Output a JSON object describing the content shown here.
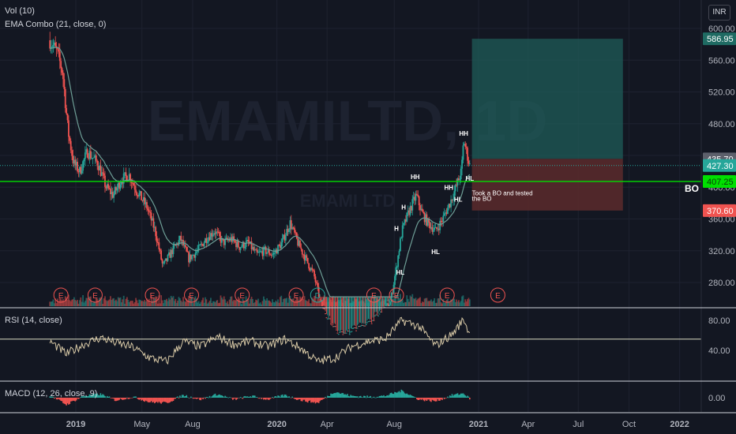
{
  "legend": {
    "vol": "Vol (10)",
    "ema": "EMA Combo (21, close, 0)",
    "rsi": "RSI (14, close)",
    "macd": "MACD (12, 26, close, 9)"
  },
  "currency": "INR",
  "watermark": {
    "symbol": "EMAMILTD, 1D",
    "name": "EMAMI LTD"
  },
  "colors": {
    "background": "#131722",
    "up": "#26a69a",
    "down": "#ef5350",
    "ema": "#6e9e96",
    "breakout_line": "#00e000",
    "rsi": "#d8c9a6",
    "target_zone": "#1f5c58",
    "stop_zone": "#5c2a2b"
  },
  "chart_data": [
    {
      "type": "candlestick",
      "title": "EMAMILTD, 1D",
      "y_ticks": [
        280,
        320,
        360,
        400,
        440,
        480,
        520,
        560,
        600
      ],
      "ylim": [
        265,
        610
      ],
      "x_ticks": [
        "2019",
        "May",
        "Aug",
        "2020",
        "Apr",
        "Aug",
        "2021",
        "Apr",
        "Jul",
        "Oct",
        "2022"
      ],
      "price_labels": [
        {
          "label": "586.95",
          "value": 586.95,
          "kind": "target"
        },
        {
          "label": "435.70",
          "value": 435.7,
          "kind": "entry"
        },
        {
          "label": "427.30",
          "value": 427.3,
          "kind": "last"
        },
        {
          "label": "407.25",
          "value": 407.25,
          "kind": "breakout"
        },
        {
          "label": "370.60",
          "value": 370.6,
          "kind": "stop"
        }
      ],
      "close_path": [
        {
          "date": "2018-11-15",
          "close": 585
        },
        {
          "date": "2018-11-28",
          "close": 570
        },
        {
          "date": "2018-12-08",
          "close": 545
        },
        {
          "date": "2018-12-18",
          "close": 470
        },
        {
          "date": "2018-12-28",
          "close": 430
        },
        {
          "date": "2019-01-08",
          "close": 420
        },
        {
          "date": "2019-01-22",
          "close": 445
        },
        {
          "date": "2019-02-10",
          "close": 430
        },
        {
          "date": "2019-02-25",
          "close": 400
        },
        {
          "date": "2019-03-10",
          "close": 390
        },
        {
          "date": "2019-03-25",
          "close": 410
        },
        {
          "date": "2019-04-08",
          "close": 415
        },
        {
          "date": "2019-04-22",
          "close": 395
        },
        {
          "date": "2019-05-10",
          "close": 375
        },
        {
          "date": "2019-05-25",
          "close": 345
        },
        {
          "date": "2019-06-08",
          "close": 300
        },
        {
          "date": "2019-06-25",
          "close": 320
        },
        {
          "date": "2019-07-10",
          "close": 335
        },
        {
          "date": "2019-07-25",
          "close": 310
        },
        {
          "date": "2019-08-10",
          "close": 320
        },
        {
          "date": "2019-08-25",
          "close": 335
        },
        {
          "date": "2019-09-10",
          "close": 345
        },
        {
          "date": "2019-09-25",
          "close": 330
        },
        {
          "date": "2019-10-10",
          "close": 335
        },
        {
          "date": "2019-10-25",
          "close": 325
        },
        {
          "date": "2019-11-10",
          "close": 330
        },
        {
          "date": "2019-11-25",
          "close": 315
        },
        {
          "date": "2019-12-10",
          "close": 320
        },
        {
          "date": "2019-12-25",
          "close": 315
        },
        {
          "date": "2020-01-10",
          "close": 330
        },
        {
          "date": "2020-01-25",
          "close": 355
        },
        {
          "date": "2020-02-08",
          "close": 330
        },
        {
          "date": "2020-02-22",
          "close": 310
        },
        {
          "date": "2020-03-08",
          "close": 290
        },
        {
          "date": "2020-03-22",
          "close": 250
        },
        {
          "date": "2020-04-05",
          "close": 230
        },
        {
          "date": "2020-04-20",
          "close": 218
        },
        {
          "date": "2020-05-05",
          "close": 215
        },
        {
          "date": "2020-05-20",
          "close": 220
        },
        {
          "date": "2020-06-05",
          "close": 225
        },
        {
          "date": "2020-06-20",
          "close": 230
        },
        {
          "date": "2020-07-05",
          "close": 240
        },
        {
          "date": "2020-07-25",
          "close": 255
        },
        {
          "date": "2020-08-05",
          "close": 300
        },
        {
          "date": "2020-08-15",
          "close": 345
        },
        {
          "date": "2020-08-28",
          "close": 370
        },
        {
          "date": "2020-09-10",
          "close": 390
        },
        {
          "date": "2020-09-20",
          "close": 368
        },
        {
          "date": "2020-10-01",
          "close": 355
        },
        {
          "date": "2020-10-15",
          "close": 345
        },
        {
          "date": "2020-10-28",
          "close": 360
        },
        {
          "date": "2020-11-10",
          "close": 380
        },
        {
          "date": "2020-11-20",
          "close": 398
        },
        {
          "date": "2020-12-01",
          "close": 420
        },
        {
          "date": "2020-12-05",
          "close": 460
        },
        {
          "date": "2020-12-10",
          "close": 445
        },
        {
          "date": "2020-12-16",
          "close": 427.3
        }
      ],
      "annotations": [
        {
          "text": "HH",
          "date": "2020-12-05",
          "price": 465
        },
        {
          "text": "HH",
          "date": "2020-09-08",
          "price": 410
        },
        {
          "text": "HH",
          "date": "2020-11-08",
          "price": 397
        },
        {
          "text": "HL",
          "date": "2020-12-16",
          "price": 408
        },
        {
          "text": "HL",
          "date": "2020-11-25",
          "price": 382
        },
        {
          "text": "HL",
          "date": "2020-10-15",
          "price": 316
        },
        {
          "text": "HL",
          "date": "2020-08-12",
          "price": 290
        },
        {
          "text": "H",
          "date": "2020-08-05",
          "price": 345
        },
        {
          "text": "H",
          "date": "2020-08-18",
          "price": 372
        },
        {
          "text": "BO",
          "price": 407.25,
          "position": "right"
        },
        {
          "text": "Took a BO and tested",
          "date": "2020-12-20",
          "price": 390
        },
        {
          "text": "the BO",
          "date": "2020-12-20",
          "price": 383
        }
      ],
      "events": [
        {
          "date": "2018-12-05",
          "label": "E"
        },
        {
          "date": "2019-02-05",
          "label": "E"
        },
        {
          "date": "2019-05-20",
          "label": "E"
        },
        {
          "date": "2019-07-30",
          "label": "E"
        },
        {
          "date": "2019-10-30",
          "label": "E"
        },
        {
          "date": "2020-02-05",
          "label": "E"
        },
        {
          "date": "2020-03-15",
          "label": "D"
        },
        {
          "date": "2020-06-25",
          "label": "E"
        },
        {
          "date": "2020-08-05",
          "label": "E"
        },
        {
          "date": "2020-11-05",
          "label": "E"
        },
        {
          "date": "2021-02-05",
          "label": "E"
        }
      ],
      "position_tool": {
        "entry": 435.7,
        "target": 586.95,
        "stop": 370.6,
        "start_date": "2020-12-20",
        "end_date": "2021-09-20"
      }
    },
    {
      "type": "line",
      "title": "RSI (14, close)",
      "y_ticks": [
        40,
        80
      ],
      "ylim": [
        10,
        90
      ],
      "levels": [
        55
      ],
      "rsi_path": [
        {
          "date": "2018-11-15",
          "value": 52
        },
        {
          "date": "2018-12-15",
          "value": 35
        },
        {
          "date": "2019-01-15",
          "value": 48
        },
        {
          "date": "2019-02-15",
          "value": 57
        },
        {
          "date": "2019-03-15",
          "value": 50
        },
        {
          "date": "2019-04-15",
          "value": 44
        },
        {
          "date": "2019-05-15",
          "value": 30
        },
        {
          "date": "2019-06-15",
          "value": 25
        },
        {
          "date": "2019-07-15",
          "value": 52
        },
        {
          "date": "2019-08-15",
          "value": 45
        },
        {
          "date": "2019-09-15",
          "value": 58
        },
        {
          "date": "2019-10-15",
          "value": 48
        },
        {
          "date": "2019-11-15",
          "value": 52
        },
        {
          "date": "2019-12-15",
          "value": 45
        },
        {
          "date": "2020-01-15",
          "value": 55
        },
        {
          "date": "2020-02-15",
          "value": 42
        },
        {
          "date": "2020-03-15",
          "value": 25
        },
        {
          "date": "2020-04-15",
          "value": 30
        },
        {
          "date": "2020-05-15",
          "value": 45
        },
        {
          "date": "2020-06-15",
          "value": 52
        },
        {
          "date": "2020-07-15",
          "value": 55
        },
        {
          "date": "2020-08-15",
          "value": 80
        },
        {
          "date": "2020-09-15",
          "value": 72
        },
        {
          "date": "2020-10-15",
          "value": 46
        },
        {
          "date": "2020-11-15",
          "value": 62
        },
        {
          "date": "2020-12-05",
          "value": 82
        },
        {
          "date": "2020-12-16",
          "value": 61
        }
      ]
    },
    {
      "type": "histogram",
      "title": "MACD (12, 26, close, 9)",
      "y_ticks": [
        0
      ],
      "ylim": [
        -12,
        12
      ],
      "hist_path": [
        {
          "date": "2018-11-15",
          "value": 3
        },
        {
          "date": "2018-12-15",
          "value": -8
        },
        {
          "date": "2019-01-15",
          "value": 2
        },
        {
          "date": "2019-02-15",
          "value": 4
        },
        {
          "date": "2019-03-15",
          "value": -3
        },
        {
          "date": "2019-04-15",
          "value": 1
        },
        {
          "date": "2019-05-15",
          "value": -5
        },
        {
          "date": "2019-06-15",
          "value": -6
        },
        {
          "date": "2019-07-15",
          "value": 3
        },
        {
          "date": "2019-08-15",
          "value": -2
        },
        {
          "date": "2019-09-15",
          "value": 4
        },
        {
          "date": "2019-10-15",
          "value": -2
        },
        {
          "date": "2019-11-15",
          "value": 2
        },
        {
          "date": "2019-12-15",
          "value": -2
        },
        {
          "date": "2020-01-15",
          "value": 3
        },
        {
          "date": "2020-02-15",
          "value": -3
        },
        {
          "date": "2020-03-15",
          "value": -6
        },
        {
          "date": "2020-04-15",
          "value": 7
        },
        {
          "date": "2020-05-15",
          "value": 2
        },
        {
          "date": "2020-06-15",
          "value": 1
        },
        {
          "date": "2020-07-15",
          "value": 2
        },
        {
          "date": "2020-08-15",
          "value": 8
        },
        {
          "date": "2020-09-15",
          "value": -2
        },
        {
          "date": "2020-10-15",
          "value": -4
        },
        {
          "date": "2020-11-15",
          "value": 3
        },
        {
          "date": "2020-12-05",
          "value": 5
        },
        {
          "date": "2020-12-16",
          "value": -1
        }
      ]
    }
  ]
}
